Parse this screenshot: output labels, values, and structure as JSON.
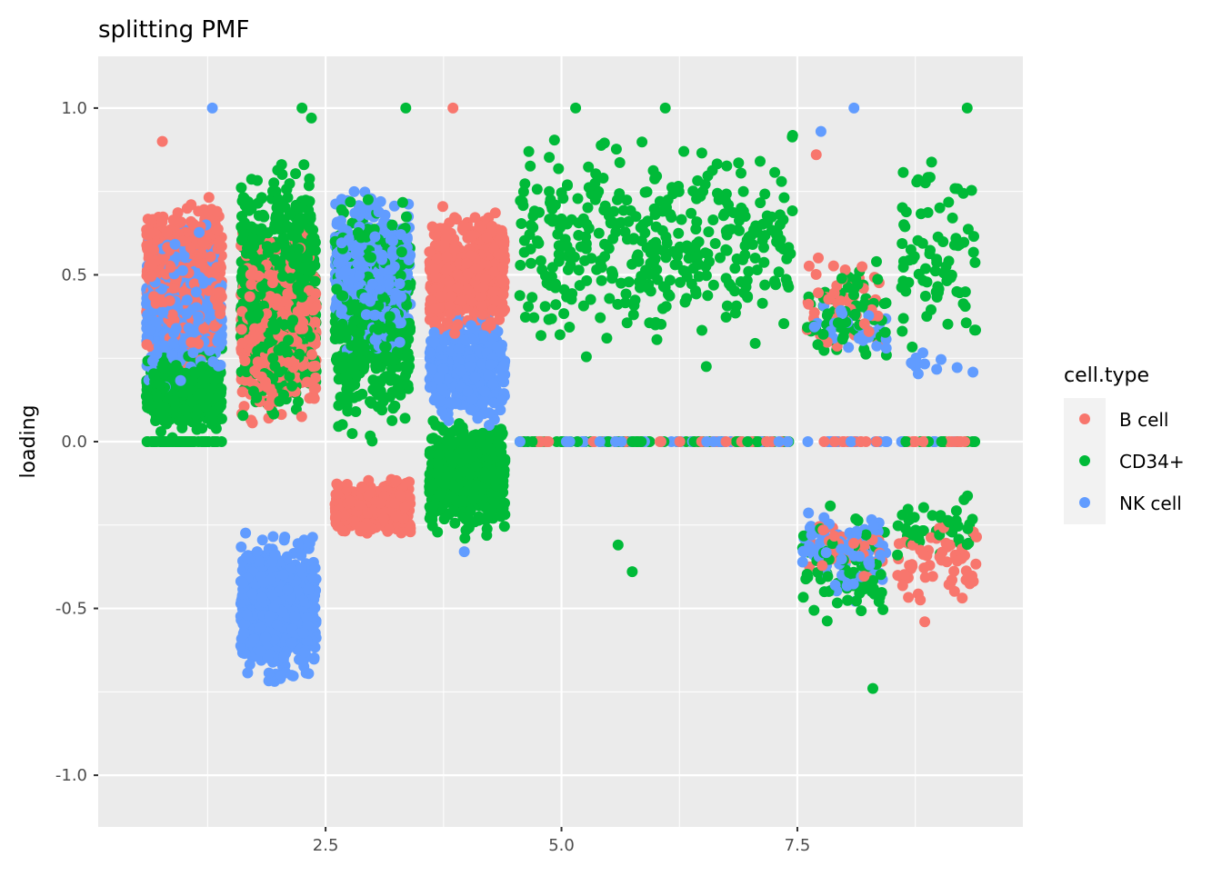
{
  "chart_data": {
    "type": "scatter",
    "title": "splitting PMF",
    "xlabel": "",
    "ylabel": "loading",
    "xlim": [
      0.09,
      9.89
    ],
    "ylim": [
      -1.155,
      1.155
    ],
    "x_ticks": [
      2.5,
      5.0,
      7.5
    ],
    "x_tick_labels": [
      "2.5",
      "5.0",
      "7.5"
    ],
    "y_ticks": [
      -1.0,
      -0.5,
      0.0,
      0.5,
      1.0
    ],
    "y_tick_labels": [
      "-1.0",
      "-0.5",
      "0.0",
      "0.5",
      "1.0"
    ],
    "grid": true,
    "legend": {
      "title": "cell.type",
      "placement": "right",
      "entries": [
        {
          "label": "B cell",
          "color": "#F8766D"
        },
        {
          "label": "CD34+",
          "color": "#00BA38"
        },
        {
          "label": "NK cell",
          "color": "#619CFF"
        }
      ]
    },
    "note": "points are jittered; clusters describe groups of points by x-range, y-range and count",
    "clusters": [
      {
        "group": 1,
        "type": "CD34+",
        "x": [
          0.6,
          1.4
        ],
        "y": [
          0.0,
          0.3
        ],
        "n": 450
      },
      {
        "group": 1,
        "type": "CD34+",
        "x": [
          0.6,
          1.4
        ],
        "y": [
          0.0,
          0.0
        ],
        "n": 60
      },
      {
        "group": 1,
        "type": "B cell",
        "x": [
          0.6,
          1.4
        ],
        "y": [
          0.2,
          0.78
        ],
        "n": 650
      },
      {
        "group": 1,
        "type": "NK cell",
        "x": [
          0.6,
          1.4
        ],
        "y": [
          0.12,
          0.68
        ],
        "n": 550
      },
      {
        "group": 2,
        "type": "CD34+",
        "x": [
          1.6,
          2.4
        ],
        "y": [
          0.0,
          0.88
        ],
        "n": 750
      },
      {
        "group": 2,
        "type": "B cell",
        "x": [
          1.6,
          2.4
        ],
        "y": [
          0.02,
          0.68
        ],
        "n": 550
      },
      {
        "group": 2,
        "type": "NK cell",
        "x": [
          1.6,
          2.4
        ],
        "y": [
          -0.76,
          -0.24
        ],
        "n": 650
      },
      {
        "group": 3,
        "type": "NK cell",
        "x": [
          2.6,
          3.4
        ],
        "y": [
          0.22,
          0.78
        ],
        "n": 550
      },
      {
        "group": 3,
        "type": "CD34+",
        "x": [
          2.6,
          3.4
        ],
        "y": [
          -0.05,
          0.8
        ],
        "n": 550
      },
      {
        "group": 3,
        "type": "B cell",
        "x": [
          2.6,
          3.4
        ],
        "y": [
          -0.3,
          -0.1
        ],
        "n": 450
      },
      {
        "group": 4,
        "type": "B cell",
        "x": [
          3.6,
          4.4
        ],
        "y": [
          0.28,
          0.72
        ],
        "n": 650
      },
      {
        "group": 4,
        "type": "NK cell",
        "x": [
          3.6,
          4.4
        ],
        "y": [
          0.02,
          0.42
        ],
        "n": 450
      },
      {
        "group": 4,
        "type": "CD34+",
        "x": [
          3.6,
          4.4
        ],
        "y": [
          -0.3,
          0.1
        ],
        "n": 650
      },
      {
        "group": 5,
        "type": "CD34+",
        "x": [
          4.55,
          7.45
        ],
        "y": [
          0.2,
          0.98
        ],
        "n": 380
      },
      {
        "group": 5,
        "type": "CD34+",
        "x": [
          4.55,
          7.45
        ],
        "y": [
          0.0,
          0.0
        ],
        "n": 70
      },
      {
        "group": 5,
        "type": "B cell",
        "x": [
          4.55,
          7.45
        ],
        "y": [
          0.0,
          0.0
        ],
        "n": 40
      },
      {
        "group": 5,
        "type": "NK cell",
        "x": [
          4.55,
          7.45
        ],
        "y": [
          0.0,
          0.0
        ],
        "n": 50
      },
      {
        "group": 8,
        "type": "CD34+",
        "x": [
          7.6,
          8.45
        ],
        "y": [
          0.15,
          0.6
        ],
        "n": 70
      },
      {
        "group": 8,
        "type": "B cell",
        "x": [
          7.6,
          8.45
        ],
        "y": [
          0.2,
          0.6
        ],
        "n": 50
      },
      {
        "group": 8,
        "type": "NK cell",
        "x": [
          7.6,
          8.45
        ],
        "y": [
          0.25,
          0.45
        ],
        "n": 30
      },
      {
        "group": 8,
        "type": "NK cell",
        "x": [
          7.55,
          8.45
        ],
        "y": [
          -0.5,
          -0.15
        ],
        "n": 90
      },
      {
        "group": 8,
        "type": "CD34+",
        "x": [
          7.55,
          8.45
        ],
        "y": [
          -0.65,
          -0.15
        ],
        "n": 70
      },
      {
        "group": 8,
        "type": "B cell",
        "x": [
          7.6,
          8.45
        ],
        "y": [
          -0.45,
          -0.2
        ],
        "n": 40
      },
      {
        "group": 8,
        "type": "B cell",
        "x": [
          7.6,
          8.45
        ],
        "y": [
          0.0,
          0.0
        ],
        "n": 15
      },
      {
        "group": 8,
        "type": "NK cell",
        "x": [
          7.6,
          8.45
        ],
        "y": [
          0.0,
          0.0
        ],
        "n": 15
      },
      {
        "group": 9,
        "type": "CD34+",
        "x": [
          8.6,
          9.4
        ],
        "y": [
          0.18,
          0.9
        ],
        "n": 80
      },
      {
        "group": 9,
        "type": "NK cell",
        "x": [
          8.6,
          9.4
        ],
        "y": [
          0.18,
          0.3
        ],
        "n": 12
      },
      {
        "group": 9,
        "type": "B cell",
        "x": [
          8.55,
          9.4
        ],
        "y": [
          -0.52,
          -0.2
        ],
        "n": 60
      },
      {
        "group": 9,
        "type": "CD34+",
        "x": [
          8.55,
          9.4
        ],
        "y": [
          -0.35,
          -0.15
        ],
        "n": 45
      },
      {
        "group": 9,
        "type": "CD34+",
        "x": [
          8.6,
          9.4
        ],
        "y": [
          0.0,
          0.0
        ],
        "n": 15
      },
      {
        "group": 9,
        "type": "B cell",
        "x": [
          8.6,
          9.4
        ],
        "y": [
          0.0,
          0.0
        ],
        "n": 15
      },
      {
        "group": 9,
        "type": "NK cell",
        "x": [
          8.6,
          9.4
        ],
        "y": [
          0.0,
          0.0
        ],
        "n": 8
      }
    ],
    "outliers": [
      {
        "type": "NK cell",
        "x": 1.3,
        "y": 1.0
      },
      {
        "type": "CD34+",
        "x": 2.25,
        "y": 1.0
      },
      {
        "type": "CD34+",
        "x": 2.35,
        "y": 0.97
      },
      {
        "type": "CD34+",
        "x": 3.35,
        "y": 1.0
      },
      {
        "type": "B cell",
        "x": 3.85,
        "y": 1.0
      },
      {
        "type": "B cell",
        "x": 0.77,
        "y": 0.9
      },
      {
        "type": "CD34+",
        "x": 5.15,
        "y": 1.0
      },
      {
        "type": "CD34+",
        "x": 6.1,
        "y": 1.0
      },
      {
        "type": "CD34+",
        "x": 5.6,
        "y": -0.31
      },
      {
        "type": "CD34+",
        "x": 5.75,
        "y": -0.39
      },
      {
        "type": "NK cell",
        "x": 8.1,
        "y": 1.0
      },
      {
        "type": "NK cell",
        "x": 7.75,
        "y": 0.93
      },
      {
        "type": "B cell",
        "x": 7.7,
        "y": 0.86
      },
      {
        "type": "CD34+",
        "x": 9.3,
        "y": 1.0
      },
      {
        "type": "CD34+",
        "x": 8.3,
        "y": -0.74
      },
      {
        "type": "NK cell",
        "x": 3.97,
        "y": -0.33
      },
      {
        "type": "B cell",
        "x": 8.85,
        "y": -0.54
      }
    ]
  }
}
